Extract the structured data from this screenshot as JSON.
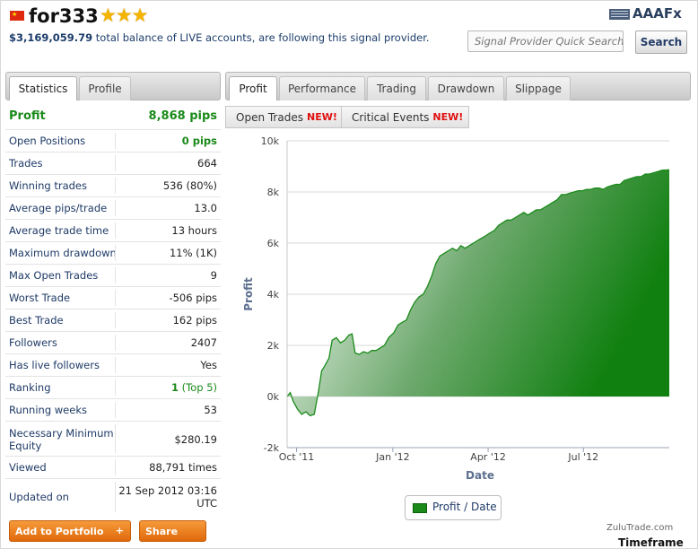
{
  "header": {
    "title": "for333",
    "stars": "★★★",
    "balance": "$3,169,059.79",
    "balance_text": "total balance of LIVE accounts, are following this signal provider.",
    "logo_text": "AAAFx"
  },
  "search": {
    "placeholder": "Signal Provider Quick Search",
    "button": "Search"
  },
  "left_tabs": [
    "Statistics",
    "Profile"
  ],
  "right_tabs": [
    "Profit",
    "Performance",
    "Trading",
    "Drawdown",
    "Slippage"
  ],
  "sub_tabs": [
    {
      "label": "Open Trades",
      "badge": "NEW!"
    },
    {
      "label": "Critical Events",
      "badge": "NEW!"
    }
  ],
  "stats": [
    {
      "label": "Profit",
      "value": "8,868 pips"
    },
    {
      "label": "Open Positions",
      "value": "0 pips"
    },
    {
      "label": "Trades",
      "value": "664"
    },
    {
      "label": "Winning trades",
      "value": "536 (80%)"
    },
    {
      "label": "Average pips/trade",
      "value": "13.0"
    },
    {
      "label": "Average trade time",
      "value": "13 hours"
    },
    {
      "label": "Maximum drawdown",
      "value": "11% (1K)"
    },
    {
      "label": "Max Open Trades",
      "value": "9"
    },
    {
      "label": "Worst Trade",
      "value": "-506 pips"
    },
    {
      "label": "Best Trade",
      "value": "162 pips"
    },
    {
      "label": "Followers",
      "value": "2407"
    },
    {
      "label": "Has live followers",
      "value": "Yes"
    },
    {
      "label": "Ranking",
      "value": "1",
      "value_sub": "(Top 5)"
    },
    {
      "label": "Running weeks",
      "value": "53"
    },
    {
      "label": "Necessary Minimum Equity",
      "value": "$280.19"
    },
    {
      "label": "Viewed",
      "value": "88,791 times"
    },
    {
      "label": "Updated on",
      "value": "21 Sep 2012 03:16 UTC"
    }
  ],
  "actions": {
    "add": "Add to Portfolio",
    "add_icon": "+",
    "share": "Share"
  },
  "footer": {
    "credit": "ZuluTrade.com",
    "timeframe": "Timeframe"
  },
  "chart_data": {
    "type": "area",
    "xlabel": "Date",
    "ylabel": "Profit",
    "legend": "Profit / Date",
    "legend_position": "bottom",
    "ylim": [
      -2000,
      10000
    ],
    "yticks": [
      -2000,
      0,
      2000,
      4000,
      6000,
      8000,
      10000
    ],
    "ytick_labels": [
      "-2k",
      "0k",
      "2k",
      "4k",
      "6k",
      "8k",
      "10k"
    ],
    "xlim": [
      "2011-09-22",
      "2012-09-21"
    ],
    "xticks": [
      "2011-10-01",
      "2012-01-01",
      "2012-04-01",
      "2012-07-01"
    ],
    "xtick_labels": [
      "Oct '11",
      "Jan '12",
      "Apr '12",
      "Jul '12"
    ],
    "color": "#1a8a1a",
    "grid": true,
    "series": [
      {
        "points": [
          [
            "2011-09-22",
            0
          ],
          [
            "2011-09-25",
            150
          ],
          [
            "2011-09-28",
            -200
          ],
          [
            "2011-10-02",
            -500
          ],
          [
            "2011-10-06",
            -700
          ],
          [
            "2011-10-10",
            -600
          ],
          [
            "2011-10-14",
            -750
          ],
          [
            "2011-10-18",
            -700
          ],
          [
            "2011-10-22",
            200
          ],
          [
            "2011-10-25",
            1000
          ],
          [
            "2011-10-28",
            1200
          ],
          [
            "2011-11-01",
            1500
          ],
          [
            "2011-11-04",
            2200
          ],
          [
            "2011-11-08",
            2300
          ],
          [
            "2011-11-12",
            2100
          ],
          [
            "2011-11-16",
            2200
          ],
          [
            "2011-11-20",
            2400
          ],
          [
            "2011-11-23",
            2450
          ],
          [
            "2011-11-26",
            1700
          ],
          [
            "2011-11-30",
            1650
          ],
          [
            "2011-12-04",
            1750
          ],
          [
            "2011-12-08",
            1700
          ],
          [
            "2011-12-12",
            1800
          ],
          [
            "2011-12-16",
            1800
          ],
          [
            "2011-12-20",
            1900
          ],
          [
            "2011-12-24",
            2000
          ],
          [
            "2011-12-28",
            2300
          ],
          [
            "2012-01-02",
            2500
          ],
          [
            "2012-01-06",
            2800
          ],
          [
            "2012-01-10",
            2900
          ],
          [
            "2012-01-14",
            3000
          ],
          [
            "2012-01-18",
            3400
          ],
          [
            "2012-01-22",
            3700
          ],
          [
            "2012-01-26",
            3900
          ],
          [
            "2012-01-30",
            4000
          ],
          [
            "2012-02-03",
            4300
          ],
          [
            "2012-02-07",
            4700
          ],
          [
            "2012-02-11",
            5200
          ],
          [
            "2012-02-15",
            5500
          ],
          [
            "2012-02-19",
            5600
          ],
          [
            "2012-02-23",
            5700
          ],
          [
            "2012-02-27",
            5800
          ],
          [
            "2012-03-02",
            5700
          ],
          [
            "2012-03-06",
            5900
          ],
          [
            "2012-03-10",
            5800
          ],
          [
            "2012-03-14",
            5900
          ],
          [
            "2012-03-18",
            6000
          ],
          [
            "2012-03-22",
            6100
          ],
          [
            "2012-03-26",
            6200
          ],
          [
            "2012-03-30",
            6300
          ],
          [
            "2012-04-03",
            6400
          ],
          [
            "2012-04-07",
            6500
          ],
          [
            "2012-04-11",
            6700
          ],
          [
            "2012-04-15",
            6800
          ],
          [
            "2012-04-19",
            6900
          ],
          [
            "2012-04-23",
            6900
          ],
          [
            "2012-04-27",
            7000
          ],
          [
            "2012-05-01",
            7100
          ],
          [
            "2012-05-05",
            7200
          ],
          [
            "2012-05-09",
            7100
          ],
          [
            "2012-05-13",
            7200
          ],
          [
            "2012-05-17",
            7300
          ],
          [
            "2012-05-21",
            7300
          ],
          [
            "2012-05-25",
            7400
          ],
          [
            "2012-05-29",
            7500
          ],
          [
            "2012-06-02",
            7600
          ],
          [
            "2012-06-06",
            7700
          ],
          [
            "2012-06-10",
            7900
          ],
          [
            "2012-06-14",
            7900
          ],
          [
            "2012-06-18",
            7950
          ],
          [
            "2012-06-22",
            8000
          ],
          [
            "2012-06-26",
            8050
          ],
          [
            "2012-06-30",
            8050
          ],
          [
            "2012-07-04",
            8100
          ],
          [
            "2012-07-08",
            8100
          ],
          [
            "2012-07-12",
            8150
          ],
          [
            "2012-07-16",
            8150
          ],
          [
            "2012-07-20",
            8100
          ],
          [
            "2012-07-24",
            8200
          ],
          [
            "2012-07-28",
            8250
          ],
          [
            "2012-08-01",
            8300
          ],
          [
            "2012-08-05",
            8300
          ],
          [
            "2012-08-09",
            8450
          ],
          [
            "2012-08-13",
            8500
          ],
          [
            "2012-08-17",
            8550
          ],
          [
            "2012-08-21",
            8600
          ],
          [
            "2012-08-25",
            8600
          ],
          [
            "2012-08-29",
            8700
          ],
          [
            "2012-09-02",
            8700
          ],
          [
            "2012-09-06",
            8750
          ],
          [
            "2012-09-10",
            8800
          ],
          [
            "2012-09-14",
            8850
          ],
          [
            "2012-09-18",
            8860
          ],
          [
            "2012-09-21",
            8868
          ]
        ]
      }
    ]
  }
}
